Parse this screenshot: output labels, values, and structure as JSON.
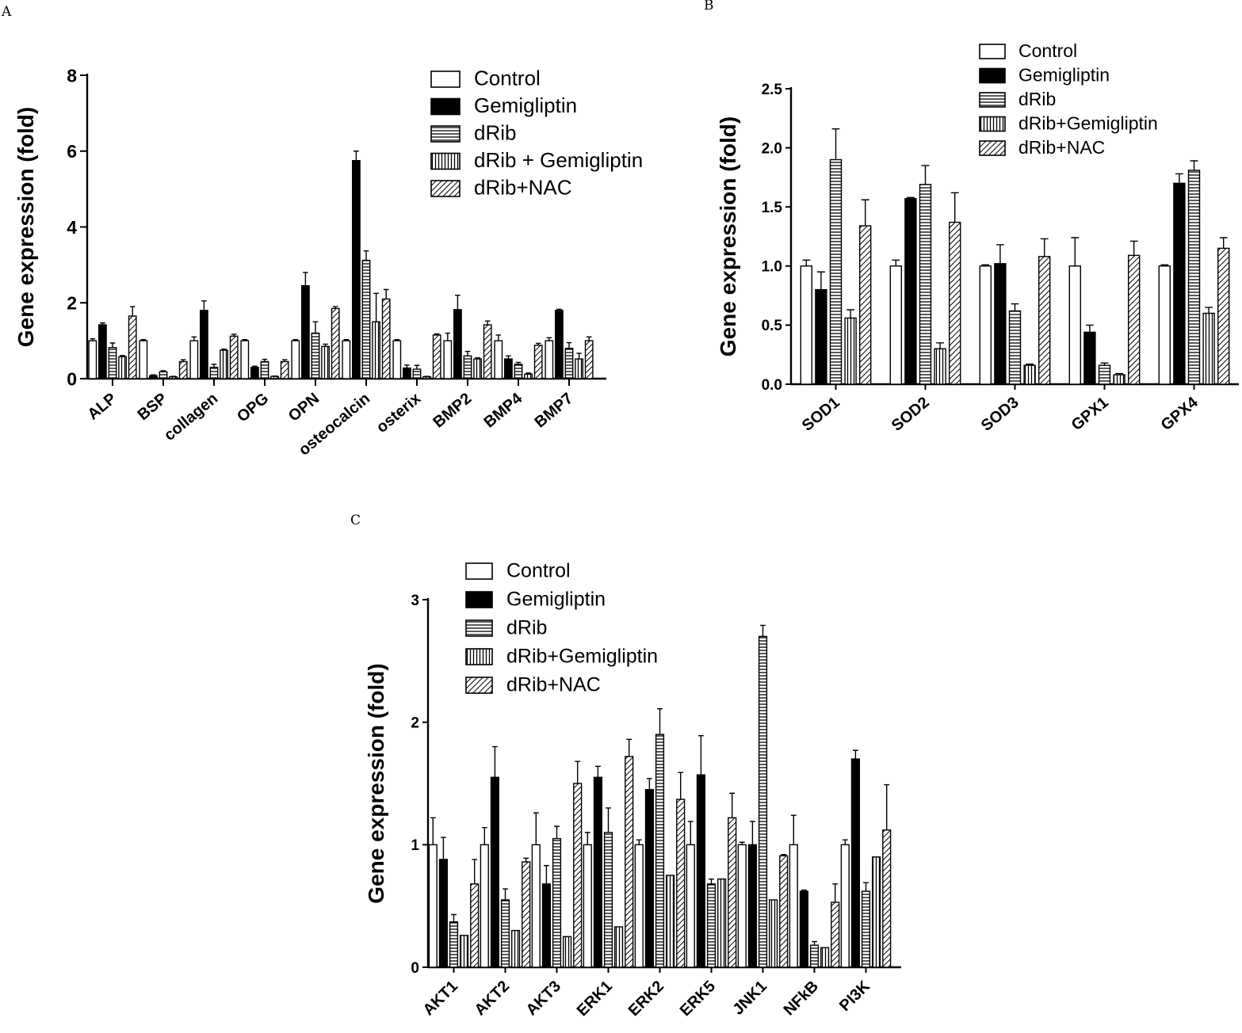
{
  "chart_data": [
    {
      "panel": "A",
      "type": "bar",
      "ylabel": "Gene expression (fold)",
      "ylim": [
        0,
        8
      ],
      "yticks": [
        "0",
        "2",
        "4",
        "6",
        "8"
      ],
      "categories": [
        "ALP",
        "BSP",
        "collagen",
        "OPG",
        "OPN",
        "osteocalcin",
        "osterix",
        "BMP2",
        "BMP4",
        "BMP7"
      ],
      "legend_position": "top-right",
      "series": [
        {
          "name": "Control",
          "pattern": "open",
          "values": [
            1.0,
            1.0,
            1.0,
            1.0,
            1.0,
            1.0,
            1.0,
            1.0,
            1.0,
            1.0
          ],
          "errors": [
            0.05,
            0.03,
            0.1,
            0.03,
            0.03,
            0.03,
            0.03,
            0.2,
            0.15,
            0.08
          ]
        },
        {
          "name": "Gemigliptin",
          "pattern": "solid",
          "values": [
            1.42,
            0.08,
            1.8,
            0.3,
            2.45,
            5.75,
            0.28,
            1.82,
            0.52,
            1.8
          ],
          "errors": [
            0.05,
            0.02,
            0.25,
            0.03,
            0.35,
            0.25,
            0.08,
            0.38,
            0.08,
            0.03
          ]
        },
        {
          "name": "dRib",
          "pattern": "hstripe",
          "values": [
            0.82,
            0.18,
            0.3,
            0.45,
            1.2,
            3.12,
            0.25,
            0.6,
            0.38,
            0.8
          ],
          "errors": [
            0.12,
            0.03,
            0.08,
            0.06,
            0.3,
            0.25,
            0.1,
            0.12,
            0.05,
            0.15
          ]
        },
        {
          "name": "dRib + Gemigliptin",
          "pattern": "vstripe",
          "values": [
            0.58,
            0.05,
            0.75,
            0.06,
            0.85,
            1.5,
            0.05,
            0.52,
            0.12,
            0.52
          ],
          "errors": [
            0.03,
            0.01,
            0.03,
            0.01,
            0.06,
            0.75,
            0.01,
            0.03,
            0.03,
            0.15
          ]
        },
        {
          "name": "dRib+NAC",
          "pattern": "diagonal",
          "values": [
            1.65,
            0.45,
            1.12,
            0.45,
            1.85,
            2.1,
            1.15,
            1.42,
            0.88,
            1.0
          ],
          "errors": [
            0.25,
            0.05,
            0.05,
            0.05,
            0.05,
            0.25,
            0.03,
            0.1,
            0.05,
            0.1
          ]
        }
      ]
    },
    {
      "panel": "B",
      "type": "bar",
      "ylabel": "Gene expression (fold)",
      "ylim": [
        0,
        2.5
      ],
      "yticks": [
        "0.0",
        "0.5",
        "1.0",
        "1.5",
        "2.0",
        "2.5"
      ],
      "categories": [
        "SOD1",
        "SOD2",
        "SOD3",
        "GPX1",
        "GPX4"
      ],
      "legend_position": "top-right",
      "series": [
        {
          "name": "Control",
          "pattern": "open",
          "values": [
            1.0,
            1.0,
            1.0,
            1.0,
            1.0
          ],
          "errors": [
            0.05,
            0.05,
            0.01,
            0.24,
            0.01
          ]
        },
        {
          "name": "Gemigliptin",
          "pattern": "solid",
          "values": [
            0.8,
            1.57,
            1.02,
            0.44,
            1.7
          ],
          "errors": [
            0.15,
            0.01,
            0.16,
            0.06,
            0.08
          ]
        },
        {
          "name": "dRib",
          "pattern": "hstripe",
          "values": [
            1.9,
            1.69,
            0.62,
            0.16,
            1.81
          ],
          "errors": [
            0.26,
            0.16,
            0.06,
            0.02,
            0.08
          ]
        },
        {
          "name": "dRib+Gemigliptin",
          "pattern": "vstripe",
          "values": [
            0.56,
            0.3,
            0.16,
            0.08,
            0.6
          ],
          "errors": [
            0.07,
            0.05,
            0.01,
            0.01,
            0.05
          ]
        },
        {
          "name": "dRib+NAC",
          "pattern": "diagonal",
          "values": [
            1.34,
            1.37,
            1.08,
            1.09,
            1.15
          ],
          "errors": [
            0.22,
            0.25,
            0.15,
            0.12,
            0.09
          ]
        }
      ]
    },
    {
      "panel": "C",
      "type": "bar",
      "ylabel": "Gene expression (fold)",
      "ylim": [
        0,
        3
      ],
      "yticks": [
        "0",
        "1",
        "2",
        "3"
      ],
      "categories": [
        "AKT1",
        "AKT2",
        "AKT3",
        "ERK1",
        "ERK2",
        "ERK5",
        "JNK1",
        "NFkB",
        "PI3K"
      ],
      "legend_position": "top",
      "series": [
        {
          "name": "Control",
          "pattern": "open",
          "values": [
            1.0,
            1.0,
            1.0,
            1.0,
            1.0,
            1.0,
            1.0,
            1.0,
            1.0
          ],
          "errors": [
            0.22,
            0.14,
            0.26,
            0.1,
            0.04,
            0.19,
            0.02,
            0.24,
            0.04
          ]
        },
        {
          "name": "Gemigliptin",
          "pattern": "solid",
          "values": [
            0.88,
            1.55,
            0.68,
            1.55,
            1.45,
            1.57,
            1.0,
            0.62,
            1.7
          ],
          "errors": [
            0.18,
            0.25,
            0.15,
            0.09,
            0.09,
            0.32,
            0.19,
            0.01,
            0.07
          ]
        },
        {
          "name": "dRib",
          "pattern": "hstripe",
          "values": [
            0.37,
            0.55,
            1.05,
            1.1,
            1.9,
            0.68,
            2.7,
            0.18,
            0.62
          ],
          "errors": [
            0.06,
            0.09,
            0.1,
            0.2,
            0.21,
            0.04,
            0.09,
            0.03,
            0.07
          ]
        },
        {
          "name": "dRib+Gemigliptin",
          "pattern": "vstripe",
          "values": [
            0.26,
            0.3,
            0.25,
            0.33,
            0.75,
            0.72,
            0.55,
            0.16,
            0.9
          ]
        },
        {
          "name": "dRib+NAC",
          "pattern": "diagonal",
          "values": [
            0.68,
            0.86,
            1.5,
            1.72,
            1.37,
            1.22,
            0.91,
            0.53,
            1.12
          ],
          "errors": [
            0.2,
            0.03,
            0.18,
            0.14,
            0.22,
            0.2,
            0.01,
            0.15,
            0.37
          ]
        }
      ]
    }
  ]
}
